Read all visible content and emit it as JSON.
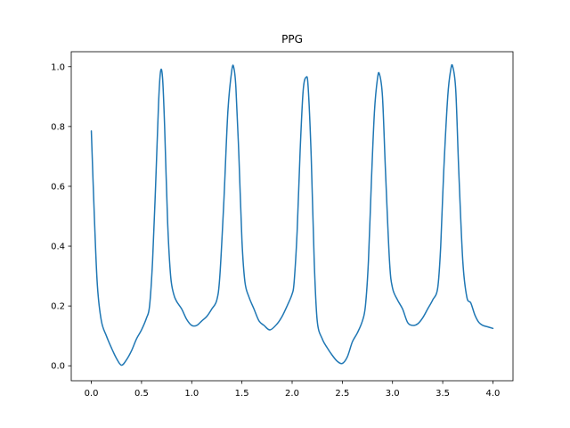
{
  "chart_data": {
    "type": "line",
    "title": "PPG",
    "xlabel": "",
    "ylabel": "",
    "xlim": [
      -0.2,
      4.2
    ],
    "ylim": [
      -0.05,
      1.05
    ],
    "x_ticks": [
      0.0,
      0.5,
      1.0,
      1.5,
      2.0,
      2.5,
      3.0,
      3.5,
      4.0
    ],
    "x_tick_labels": [
      "0.0",
      "0.5",
      "1.0",
      "1.5",
      "2.0",
      "2.5",
      "3.0",
      "3.5",
      "4.0"
    ],
    "y_ticks": [
      0.0,
      0.2,
      0.4,
      0.6,
      0.8,
      1.0
    ],
    "y_tick_labels": [
      "0.0",
      "0.2",
      "0.4",
      "0.6",
      "0.8",
      "1.0"
    ],
    "grid": false,
    "legend": "none",
    "series": [
      {
        "color": "#1f77b4",
        "points": [
          [
            0.0,
            0.785
          ],
          [
            0.03,
            0.5
          ],
          [
            0.06,
            0.27
          ],
          [
            0.1,
            0.15
          ],
          [
            0.15,
            0.1
          ],
          [
            0.2,
            0.06
          ],
          [
            0.25,
            0.025
          ],
          [
            0.3,
            0.002
          ],
          [
            0.35,
            0.02
          ],
          [
            0.4,
            0.05
          ],
          [
            0.45,
            0.09
          ],
          [
            0.5,
            0.12
          ],
          [
            0.55,
            0.16
          ],
          [
            0.58,
            0.2
          ],
          [
            0.61,
            0.35
          ],
          [
            0.64,
            0.6
          ],
          [
            0.67,
            0.88
          ],
          [
            0.69,
            0.985
          ],
          [
            0.71,
            0.96
          ],
          [
            0.73,
            0.8
          ],
          [
            0.76,
            0.48
          ],
          [
            0.79,
            0.3
          ],
          [
            0.82,
            0.24
          ],
          [
            0.85,
            0.215
          ],
          [
            0.9,
            0.19
          ],
          [
            0.95,
            0.155
          ],
          [
            1.0,
            0.135
          ],
          [
            1.05,
            0.135
          ],
          [
            1.1,
            0.15
          ],
          [
            1.15,
            0.165
          ],
          [
            1.2,
            0.19
          ],
          [
            1.25,
            0.22
          ],
          [
            1.28,
            0.3
          ],
          [
            1.32,
            0.55
          ],
          [
            1.36,
            0.85
          ],
          [
            1.4,
            0.99
          ],
          [
            1.42,
            0.995
          ],
          [
            1.44,
            0.93
          ],
          [
            1.47,
            0.7
          ],
          [
            1.5,
            0.42
          ],
          [
            1.53,
            0.28
          ],
          [
            1.57,
            0.23
          ],
          [
            1.62,
            0.19
          ],
          [
            1.67,
            0.15
          ],
          [
            1.72,
            0.135
          ],
          [
            1.78,
            0.12
          ],
          [
            1.85,
            0.14
          ],
          [
            1.9,
            0.165
          ],
          [
            1.95,
            0.2
          ],
          [
            2.0,
            0.24
          ],
          [
            2.02,
            0.28
          ],
          [
            2.05,
            0.45
          ],
          [
            2.08,
            0.72
          ],
          [
            2.11,
            0.92
          ],
          [
            2.14,
            0.965
          ],
          [
            2.16,
            0.93
          ],
          [
            2.19,
            0.7
          ],
          [
            2.22,
            0.35
          ],
          [
            2.25,
            0.15
          ],
          [
            2.3,
            0.09
          ],
          [
            2.35,
            0.06
          ],
          [
            2.4,
            0.035
          ],
          [
            2.45,
            0.015
          ],
          [
            2.5,
            0.008
          ],
          [
            2.55,
            0.03
          ],
          [
            2.6,
            0.08
          ],
          [
            2.65,
            0.11
          ],
          [
            2.7,
            0.15
          ],
          [
            2.73,
            0.2
          ],
          [
            2.76,
            0.35
          ],
          [
            2.79,
            0.62
          ],
          [
            2.82,
            0.85
          ],
          [
            2.85,
            0.96
          ],
          [
            2.87,
            0.975
          ],
          [
            2.9,
            0.9
          ],
          [
            2.93,
            0.65
          ],
          [
            2.97,
            0.35
          ],
          [
            3.0,
            0.26
          ],
          [
            3.05,
            0.22
          ],
          [
            3.1,
            0.19
          ],
          [
            3.15,
            0.145
          ],
          [
            3.2,
            0.135
          ],
          [
            3.25,
            0.14
          ],
          [
            3.3,
            0.16
          ],
          [
            3.35,
            0.19
          ],
          [
            3.4,
            0.22
          ],
          [
            3.45,
            0.26
          ],
          [
            3.48,
            0.4
          ],
          [
            3.51,
            0.65
          ],
          [
            3.55,
            0.9
          ],
          [
            3.58,
            0.99
          ],
          [
            3.6,
            1.0
          ],
          [
            3.63,
            0.92
          ],
          [
            3.66,
            0.65
          ],
          [
            3.7,
            0.35
          ],
          [
            3.74,
            0.23
          ],
          [
            3.78,
            0.21
          ],
          [
            3.82,
            0.17
          ],
          [
            3.86,
            0.145
          ],
          [
            3.9,
            0.135
          ],
          [
            3.95,
            0.13
          ],
          [
            4.0,
            0.125
          ]
        ]
      }
    ]
  }
}
